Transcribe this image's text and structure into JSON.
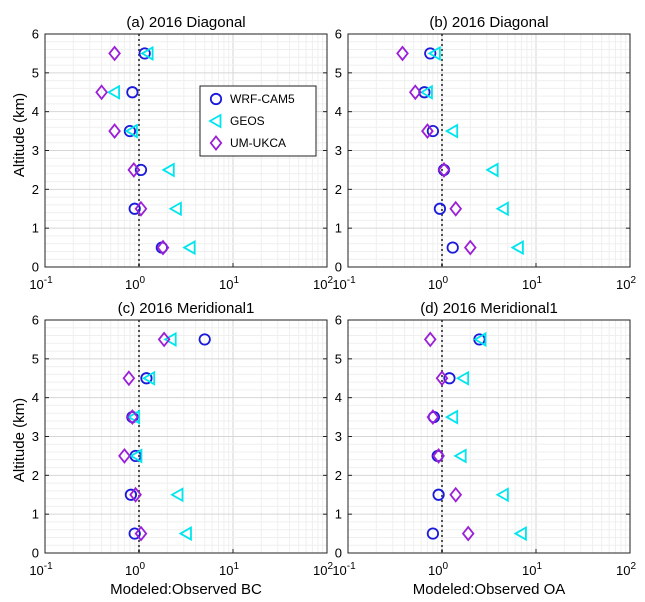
{
  "figure": {
    "ylabel": "Altitude (km)",
    "xlabel_left": "Modeled:Observed BC",
    "xlabel_right": "Modeled:Observed OA"
  },
  "legend": {
    "entries": [
      {
        "name": "WRF-CAM5",
        "marker": "circle",
        "color": "#1a1adb"
      },
      {
        "name": "GEOS",
        "marker": "triangle-left",
        "color": "#00e5ee"
      },
      {
        "name": "UM-UKCA",
        "marker": "diamond",
        "color": "#9b1fd6"
      }
    ]
  },
  "chart_data": [
    {
      "type": "scatter",
      "title": "(a) 2016 Diagonal",
      "xscale": "log",
      "xlim": [
        0.1,
        100
      ],
      "ylim": [
        0,
        6
      ],
      "xticklabels": [
        "10-1",
        "100",
        "101",
        "102"
      ],
      "yticks": [
        0,
        1,
        2,
        3,
        4,
        5,
        6
      ],
      "reference_line_x": 1,
      "series": [
        {
          "name": "WRF-CAM5",
          "x": [
            1.75,
            0.9,
            1.05,
            0.8,
            0.85,
            1.15
          ],
          "y": [
            0.5,
            1.5,
            2.5,
            3.5,
            4.5,
            5.5
          ]
        },
        {
          "name": "GEOS",
          "x": [
            3.5,
            2.5,
            2.1,
            0.85,
            0.55,
            1.25
          ],
          "y": [
            0.5,
            1.5,
            2.5,
            3.5,
            4.5,
            5.5
          ]
        },
        {
          "name": "UM-UKCA",
          "x": [
            1.8,
            1.05,
            0.88,
            0.55,
            0.4,
            0.55
          ],
          "y": [
            0.5,
            1.5,
            2.5,
            3.5,
            4.5,
            5.5
          ]
        }
      ]
    },
    {
      "type": "scatter",
      "title": "(b) 2016 Diagonal",
      "xscale": "log",
      "xlim": [
        0.1,
        100
      ],
      "ylim": [
        0,
        6
      ],
      "xticklabels": [
        "10-1",
        "100",
        "101",
        "102"
      ],
      "yticks": [
        0,
        1,
        2,
        3,
        4,
        5,
        6
      ],
      "reference_line_x": 1,
      "series": [
        {
          "name": "WRF-CAM5",
          "x": [
            1.3,
            0.95,
            1.05,
            0.8,
            0.65,
            0.75
          ],
          "y": [
            0.5,
            1.5,
            2.5,
            3.5,
            4.5,
            5.5
          ]
        },
        {
          "name": "GEOS",
          "x": [
            6.5,
            4.5,
            3.5,
            1.3,
            0.7,
            0.85
          ],
          "y": [
            0.5,
            1.5,
            2.5,
            3.5,
            4.5,
            5.5
          ]
        },
        {
          "name": "UM-UKCA",
          "x": [
            2.0,
            1.4,
            1.05,
            0.7,
            0.52,
            0.38
          ],
          "y": [
            0.5,
            1.5,
            2.5,
            3.5,
            4.5,
            5.5
          ]
        }
      ]
    },
    {
      "type": "scatter",
      "title": "(c) 2016 Meridional1",
      "xscale": "log",
      "xlim": [
        0.1,
        100
      ],
      "ylim": [
        0,
        6
      ],
      "xticklabels": [
        "10-1",
        "100",
        "101",
        "102"
      ],
      "yticks": [
        0,
        1,
        2,
        3,
        4,
        5,
        6
      ],
      "reference_line_x": 1,
      "series": [
        {
          "name": "WRF-CAM5",
          "x": [
            0.9,
            0.82,
            0.92,
            0.85,
            1.2,
            5.0
          ],
          "y": [
            0.5,
            1.5,
            2.5,
            3.5,
            4.5,
            5.5
          ]
        },
        {
          "name": "GEOS",
          "x": [
            3.2,
            2.6,
            0.95,
            0.9,
            1.3,
            2.2
          ],
          "y": [
            0.5,
            1.5,
            2.5,
            3.5,
            4.5,
            5.5
          ]
        },
        {
          "name": "UM-UKCA",
          "x": [
            1.05,
            0.92,
            0.7,
            0.85,
            0.78,
            1.85
          ],
          "y": [
            0.5,
            1.5,
            2.5,
            3.5,
            4.5,
            5.5
          ]
        }
      ]
    },
    {
      "type": "scatter",
      "title": "(d) 2016 Meridional1",
      "xscale": "log",
      "xlim": [
        0.1,
        100
      ],
      "ylim": [
        0,
        6
      ],
      "xticklabels": [
        "10-1",
        "100",
        "101",
        "102"
      ],
      "yticks": [
        0,
        1,
        2,
        3,
        4,
        5,
        6
      ],
      "reference_line_x": 1,
      "series": [
        {
          "name": "WRF-CAM5",
          "x": [
            0.8,
            0.92,
            0.9,
            0.82,
            1.2,
            2.5
          ],
          "y": [
            0.5,
            1.5,
            2.5,
            3.5,
            4.5,
            5.5
          ]
        },
        {
          "name": "GEOS",
          "x": [
            7.0,
            4.5,
            1.6,
            1.3,
            1.7,
            2.6
          ],
          "y": [
            0.5,
            1.5,
            2.5,
            3.5,
            4.5,
            5.5
          ]
        },
        {
          "name": "UM-UKCA",
          "x": [
            1.9,
            1.4,
            0.92,
            0.8,
            1.0,
            0.75
          ],
          "y": [
            0.5,
            1.5,
            2.5,
            3.5,
            4.5,
            5.5
          ]
        }
      ]
    }
  ]
}
